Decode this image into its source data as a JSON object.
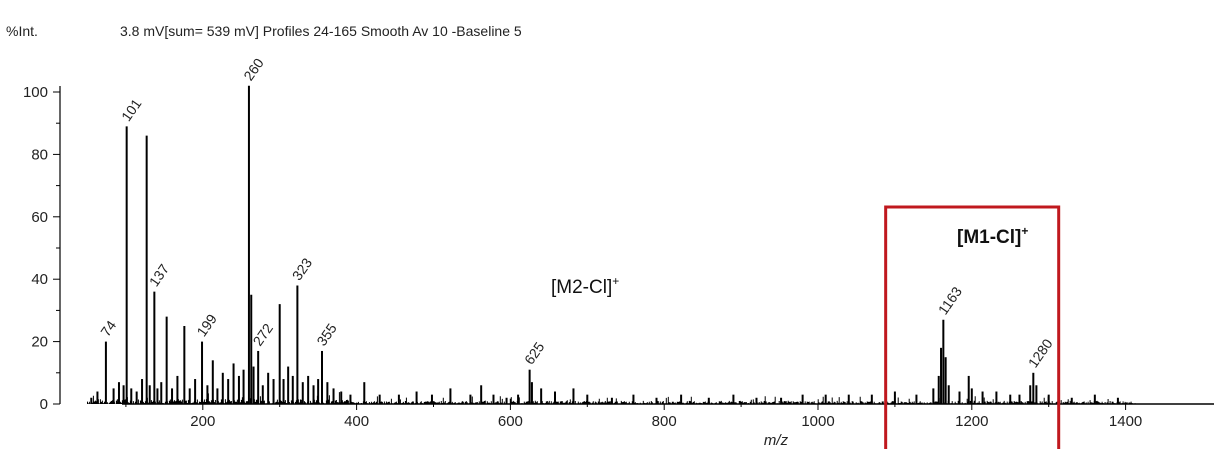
{
  "header": {
    "y_unit": "%Int.",
    "info": "3.8 mV[sum= 539 mV]  Profiles 24-165 Smooth Av 10 -Baseline 5"
  },
  "annotations": {
    "m2": {
      "base": "[M2-Cl]",
      "sup": "+"
    },
    "m1": {
      "base": "[M1-Cl]",
      "sup": "+"
    }
  },
  "colors": {
    "highlight_box": "#c0181e",
    "trace": "#000000"
  },
  "chart_data": {
    "type": "line",
    "title": "",
    "xlabel": "m/z",
    "ylabel": "%Int.",
    "xlim": [
      0,
      1414
    ],
    "ylim": [
      0,
      100
    ],
    "x_ticks": [
      200,
      400,
      600,
      800,
      1000,
      1200,
      1400
    ],
    "y_ticks": [
      0,
      20,
      40,
      60,
      80,
      100
    ],
    "grid": false,
    "peaks": [
      {
        "x": 55,
        "y": 2
      },
      {
        "x": 63,
        "y": 4
      },
      {
        "x": 74,
        "y": 20
      },
      {
        "x": 84,
        "y": 5
      },
      {
        "x": 91,
        "y": 7
      },
      {
        "x": 97,
        "y": 6
      },
      {
        "x": 101,
        "y": 89
      },
      {
        "x": 107,
        "y": 5
      },
      {
        "x": 114,
        "y": 4
      },
      {
        "x": 121,
        "y": 8
      },
      {
        "x": 127,
        "y": 86
      },
      {
        "x": 131,
        "y": 6
      },
      {
        "x": 137,
        "y": 36
      },
      {
        "x": 141,
        "y": 5
      },
      {
        "x": 146,
        "y": 7
      },
      {
        "x": 153,
        "y": 28
      },
      {
        "x": 160,
        "y": 5
      },
      {
        "x": 167,
        "y": 9
      },
      {
        "x": 176,
        "y": 25
      },
      {
        "x": 183,
        "y": 5
      },
      {
        "x": 190,
        "y": 8
      },
      {
        "x": 199,
        "y": 20
      },
      {
        "x": 206,
        "y": 6
      },
      {
        "x": 213,
        "y": 14
      },
      {
        "x": 219,
        "y": 5
      },
      {
        "x": 226,
        "y": 10
      },
      {
        "x": 233,
        "y": 8
      },
      {
        "x": 240,
        "y": 13
      },
      {
        "x": 247,
        "y": 9
      },
      {
        "x": 253,
        "y": 11
      },
      {
        "x": 260,
        "y": 102
      },
      {
        "x": 263,
        "y": 35
      },
      {
        "x": 266,
        "y": 12
      },
      {
        "x": 272,
        "y": 17
      },
      {
        "x": 278,
        "y": 6
      },
      {
        "x": 285,
        "y": 10
      },
      {
        "x": 292,
        "y": 8
      },
      {
        "x": 300,
        "y": 32
      },
      {
        "x": 305,
        "y": 8
      },
      {
        "x": 311,
        "y": 12
      },
      {
        "x": 317,
        "y": 9
      },
      {
        "x": 323,
        "y": 38
      },
      {
        "x": 330,
        "y": 7
      },
      {
        "x": 337,
        "y": 9
      },
      {
        "x": 344,
        "y": 6
      },
      {
        "x": 350,
        "y": 8
      },
      {
        "x": 355,
        "y": 17
      },
      {
        "x": 362,
        "y": 7
      },
      {
        "x": 370,
        "y": 5
      },
      {
        "x": 380,
        "y": 4
      },
      {
        "x": 392,
        "y": 3
      },
      {
        "x": 410,
        "y": 7
      },
      {
        "x": 430,
        "y": 3
      },
      {
        "x": 455,
        "y": 3
      },
      {
        "x": 478,
        "y": 4
      },
      {
        "x": 498,
        "y": 3
      },
      {
        "x": 522,
        "y": 5
      },
      {
        "x": 548,
        "y": 3
      },
      {
        "x": 562,
        "y": 6
      },
      {
        "x": 578,
        "y": 3
      },
      {
        "x": 595,
        "y": 2
      },
      {
        "x": 610,
        "y": 3
      },
      {
        "x": 625,
        "y": 11
      },
      {
        "x": 628,
        "y": 7
      },
      {
        "x": 640,
        "y": 5
      },
      {
        "x": 658,
        "y": 4
      },
      {
        "x": 682,
        "y": 5
      },
      {
        "x": 700,
        "y": 3
      },
      {
        "x": 732,
        "y": 2
      },
      {
        "x": 760,
        "y": 3
      },
      {
        "x": 790,
        "y": 2
      },
      {
        "x": 822,
        "y": 3
      },
      {
        "x": 858,
        "y": 2
      },
      {
        "x": 890,
        "y": 3
      },
      {
        "x": 920,
        "y": 2
      },
      {
        "x": 952,
        "y": 2
      },
      {
        "x": 980,
        "y": 3
      },
      {
        "x": 1010,
        "y": 3
      },
      {
        "x": 1040,
        "y": 3
      },
      {
        "x": 1070,
        "y": 3
      },
      {
        "x": 1100,
        "y": 4
      },
      {
        "x": 1128,
        "y": 3
      },
      {
        "x": 1150,
        "y": 5
      },
      {
        "x": 1157,
        "y": 9
      },
      {
        "x": 1160,
        "y": 18
      },
      {
        "x": 1163,
        "y": 27
      },
      {
        "x": 1166,
        "y": 15
      },
      {
        "x": 1170,
        "y": 6
      },
      {
        "x": 1184,
        "y": 4
      },
      {
        "x": 1196,
        "y": 9
      },
      {
        "x": 1200,
        "y": 5
      },
      {
        "x": 1214,
        "y": 4
      },
      {
        "x": 1232,
        "y": 4
      },
      {
        "x": 1250,
        "y": 3
      },
      {
        "x": 1262,
        "y": 3
      },
      {
        "x": 1276,
        "y": 6
      },
      {
        "x": 1280,
        "y": 10
      },
      {
        "x": 1284,
        "y": 6
      },
      {
        "x": 1300,
        "y": 3
      },
      {
        "x": 1330,
        "y": 2
      },
      {
        "x": 1360,
        "y": 3
      },
      {
        "x": 1390,
        "y": 2
      }
    ],
    "peak_labels": [
      {
        "x": 74,
        "y": 20,
        "text": "74"
      },
      {
        "x": 101,
        "y": 89,
        "text": "101"
      },
      {
        "x": 137,
        "y": 36,
        "text": "137"
      },
      {
        "x": 199,
        "y": 20,
        "text": "199"
      },
      {
        "x": 260,
        "y": 102,
        "text": "260"
      },
      {
        "x": 272,
        "y": 17,
        "text": "272"
      },
      {
        "x": 323,
        "y": 38,
        "text": "323"
      },
      {
        "x": 355,
        "y": 17,
        "text": "355"
      },
      {
        "x": 625,
        "y": 11,
        "text": "625"
      },
      {
        "x": 1163,
        "y": 27,
        "text": "1163"
      },
      {
        "x": 1280,
        "y": 10,
        "text": "1280"
      }
    ],
    "highlight_region": {
      "x": [
        1088,
        1313
      ],
      "label": "[M1-Cl]+"
    }
  }
}
